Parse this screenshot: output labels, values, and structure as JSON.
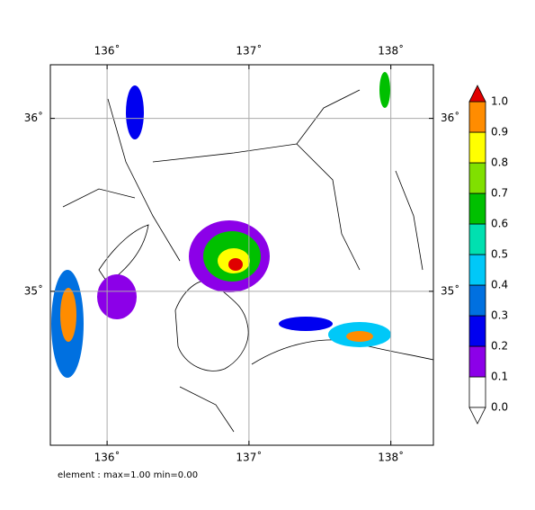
{
  "map": {
    "lon_ticks": [
      {
        "value": 136,
        "label": "136˚"
      },
      {
        "value": 137,
        "label": "137˚"
      },
      {
        "value": 138,
        "label": "138˚"
      }
    ],
    "lat_ticks": [
      {
        "value": 36,
        "label": "36˚"
      },
      {
        "value": 35,
        "label": "35˚"
      }
    ],
    "xlim": [
      135.6,
      138.3
    ],
    "ylim": [
      34.11,
      36.31
    ],
    "grid": true,
    "caption": "element : max=1.00 min=0.00"
  },
  "colorbar": {
    "ticks": [
      {
        "value": 0,
        "label": "0.0"
      },
      0.1,
      0.2,
      0.3,
      0.4,
      0.5,
      0.6,
      0.7,
      0.8,
      0.9,
      {
        "value": 1,
        "label": "1.0"
      }
    ],
    "colors": [
      "#ffffff",
      "#8c00e8",
      "#0000f0",
      "#0070e0",
      "#00c8f8",
      "#00e0b0",
      "#00c000",
      "#80e000",
      "#ffff00",
      "#ff8c00"
    ],
    "under_color": "#ffffff",
    "over_color": "#e00000"
  }
}
